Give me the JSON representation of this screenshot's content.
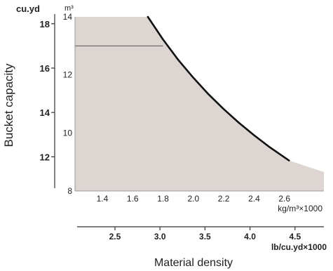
{
  "chart_data": {
    "type": "area",
    "ylabel": "Bucket capacity",
    "xlabel": "Material density",
    "y_axis_m3": {
      "unit": "m³",
      "range": [
        8,
        14
      ],
      "ticks": [
        "8",
        "10",
        "12",
        "14"
      ]
    },
    "y_axis_cuyd": {
      "unit": "cu.yd",
      "range": [
        10.46,
        18.31
      ],
      "ticks": [
        {
          "value": 12,
          "label": "12"
        },
        {
          "value": 14,
          "label": "14"
        },
        {
          "value": 16,
          "label": "16"
        },
        {
          "value": 18,
          "label": "18"
        }
      ]
    },
    "x_axis_kg": {
      "unit": "kg/m³×1000",
      "range": [
        1.22,
        2.86
      ],
      "ticks": [
        "1.4",
        "1.6",
        "1.8",
        "2.0",
        "2.2",
        "2.4",
        "2.6"
      ]
    },
    "x_axis_lb": {
      "unit": "lb/cu.yd×1000",
      "ticks": [
        {
          "value": 2.5,
          "label": "2.5"
        },
        {
          "value": 3.0,
          "label": "3.0"
        },
        {
          "value": 3.5,
          "label": "3.5"
        },
        {
          "value": 4.0,
          "label": "4.0"
        },
        {
          "value": 4.5,
          "label": "4.5"
        }
      ]
    },
    "curve": {
      "x": [
        1.7,
        1.8,
        1.9,
        2.0,
        2.1,
        2.2,
        2.3,
        2.4,
        2.5,
        2.63
      ],
      "y": [
        14.0,
        13.22,
        12.52,
        11.9,
        11.33,
        10.82,
        10.35,
        9.92,
        9.52,
        9.05
      ]
    },
    "region_upper_bound": {
      "x": [
        1.22,
        1.7,
        1.8,
        1.9,
        2.0,
        2.1,
        2.2,
        2.3,
        2.4,
        2.5,
        2.63,
        2.86
      ],
      "y": [
        14.0,
        14.0,
        13.22,
        12.52,
        11.9,
        11.33,
        10.82,
        10.35,
        9.92,
        9.52,
        9.05,
        8.65
      ]
    },
    "reference_line": {
      "y": 13.0,
      "x": [
        1.22,
        1.8
      ]
    },
    "colors": {
      "fill": "#dcd5d2",
      "curve": "#111111",
      "axis": "#333333",
      "grid": "#999999"
    }
  }
}
